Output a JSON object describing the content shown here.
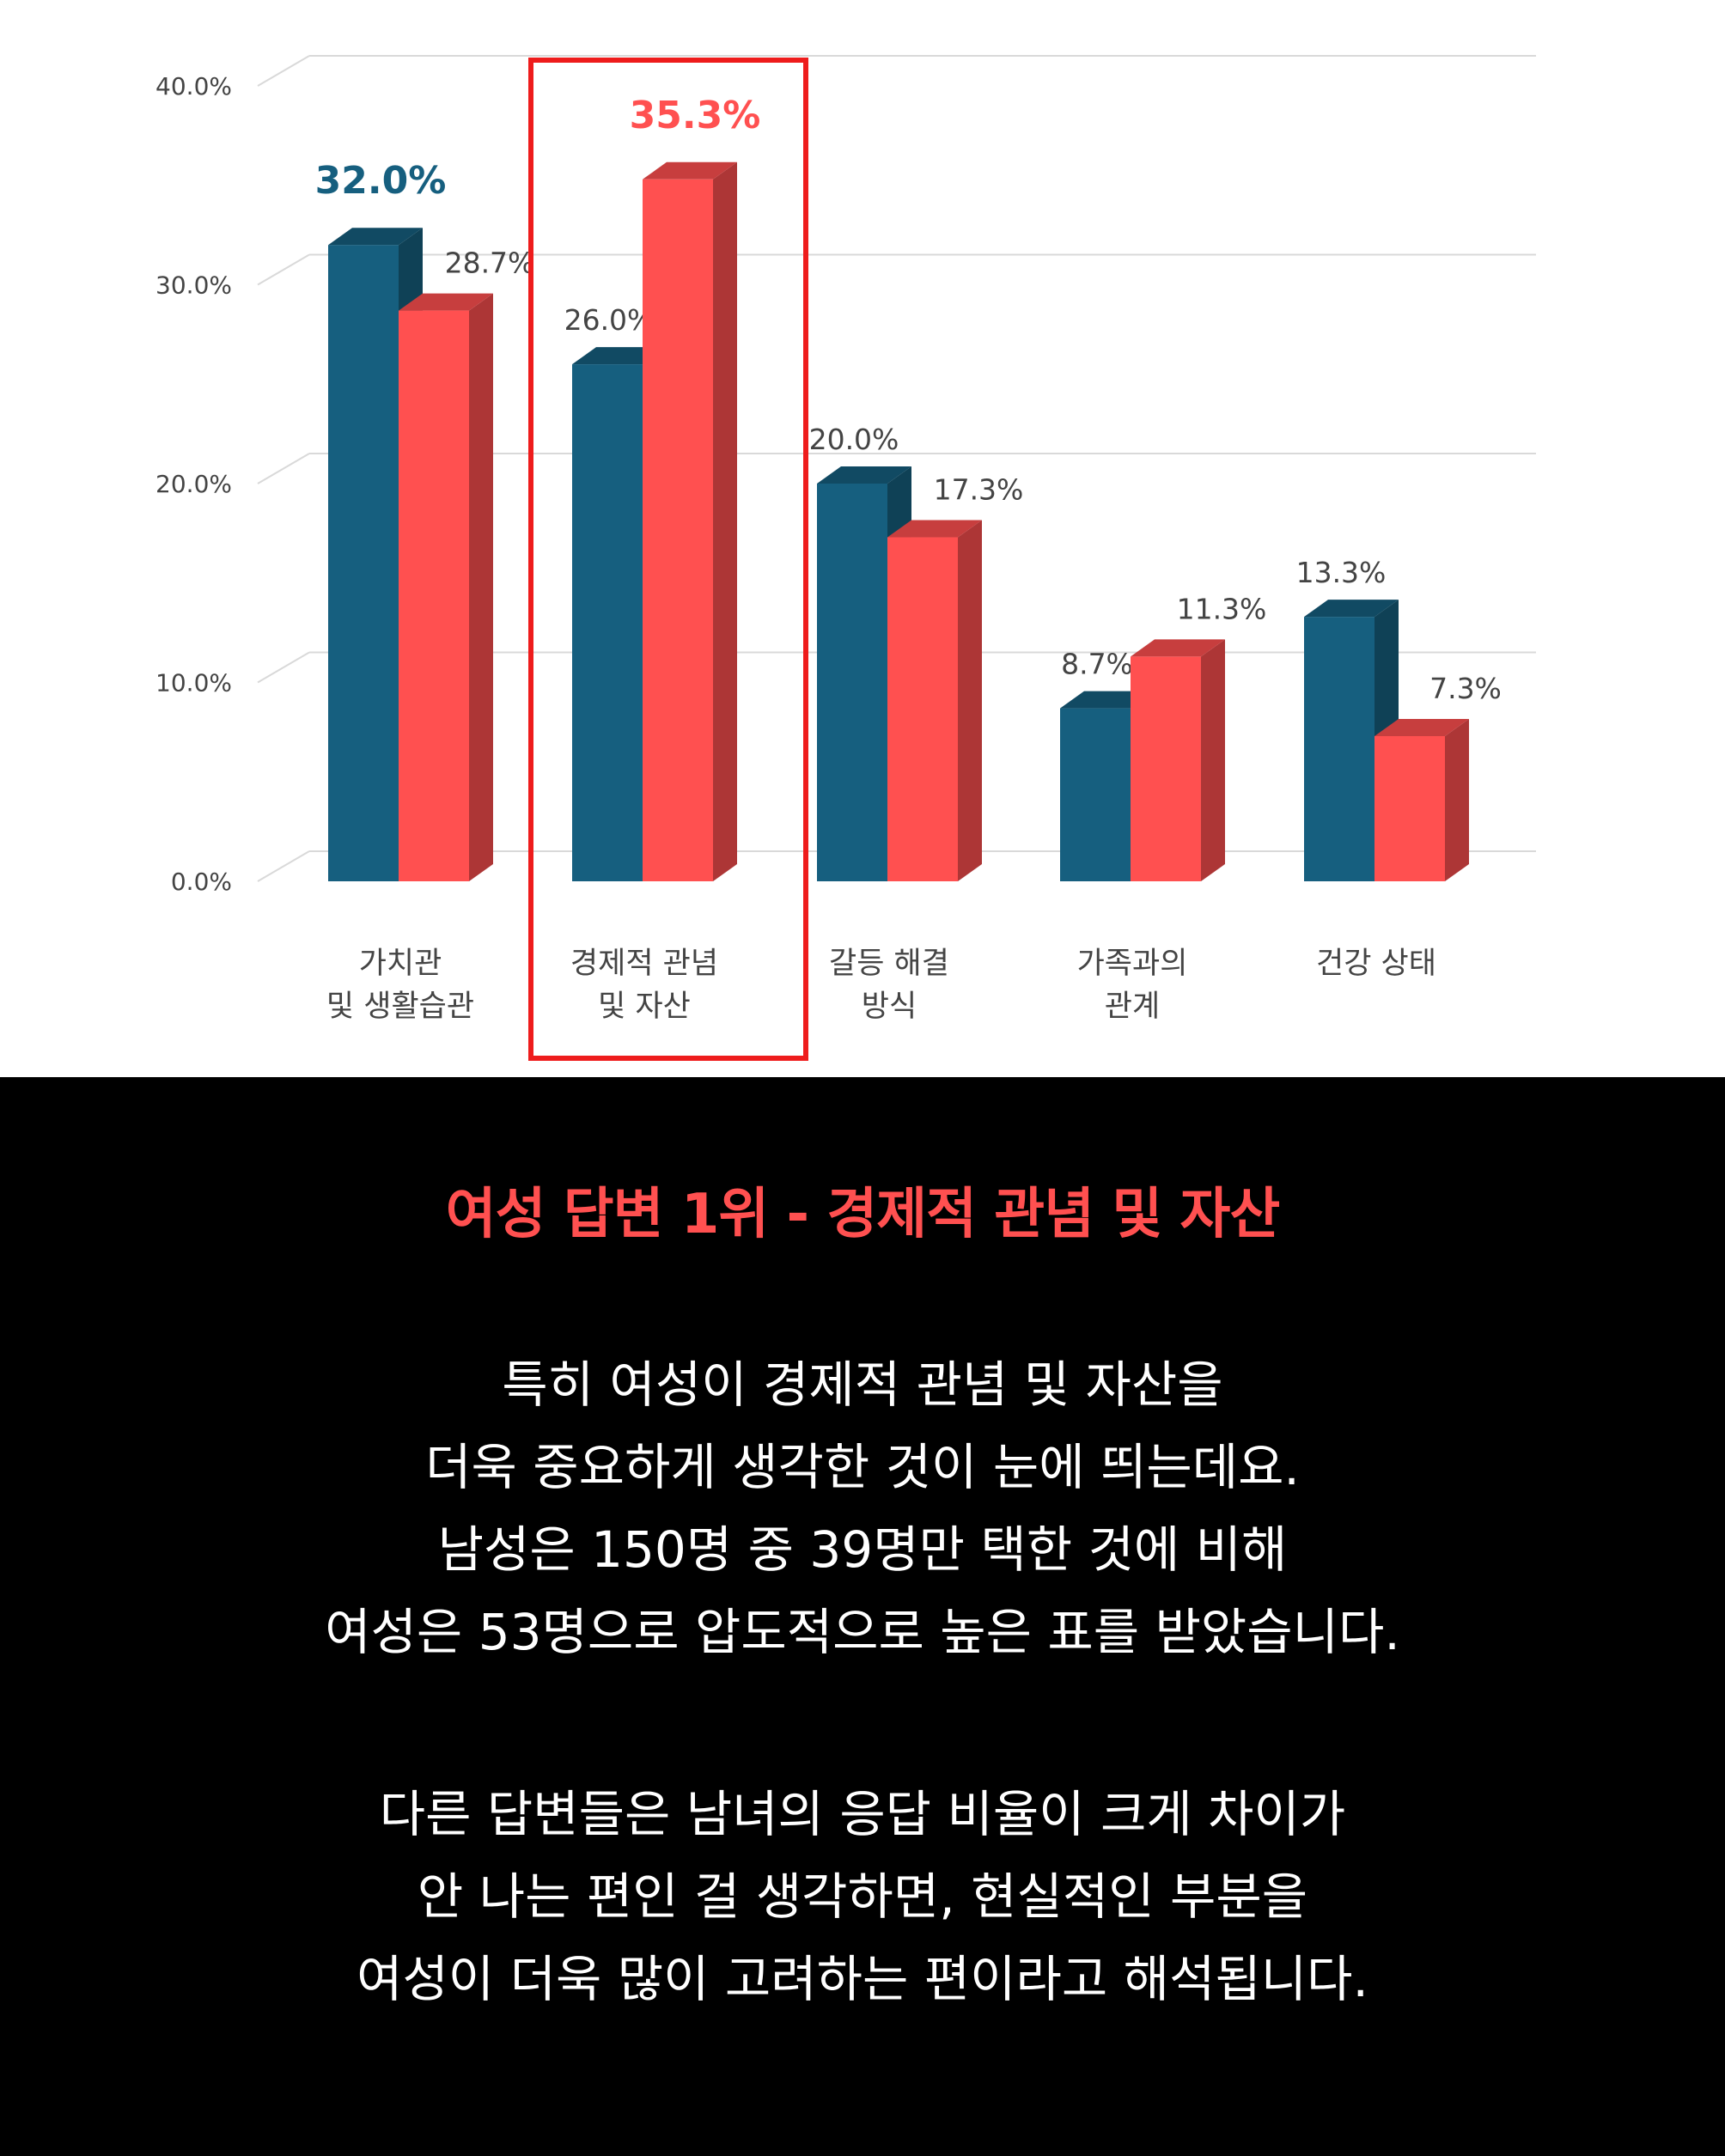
{
  "chart_data": {
    "type": "bar",
    "categories": [
      [
        "가치관",
        "및 생활습관"
      ],
      [
        "경제적 관념",
        "및 자산"
      ],
      [
        "갈등 해결",
        "방식"
      ],
      [
        "가족과의",
        "관계"
      ],
      [
        "건강 상태"
      ]
    ],
    "series": [
      {
        "values": [
          32.0,
          26.0,
          20.0,
          8.7,
          13.3
        ],
        "color": "#165f7f"
      },
      {
        "values": [
          28.7,
          35.3,
          17.3,
          11.3,
          7.3
        ],
        "color": "#ff5050"
      }
    ],
    "value_labels": [
      [
        "32.0%",
        "26.0%",
        "20.0%",
        "8.7%",
        "13.3%"
      ],
      [
        "28.7%",
        "35.3%",
        "17.3%",
        "11.3%",
        "7.3%"
      ]
    ],
    "emphasized_labels": [
      {
        "series": 0,
        "category": 0
      },
      {
        "series": 1,
        "category": 1
      }
    ],
    "ylim": [
      0,
      40
    ],
    "yticks": [
      "0.0%",
      "10.0%",
      "20.0%",
      "30.0%",
      "40.0%"
    ],
    "grid": true,
    "highlight_category": 1,
    "highlight_color": "#ee1c1c"
  },
  "text_panel": {
    "headline": "여성 답변 1위 - 경제적 관념 및 자산",
    "paragraph_1": [
      "특히 여성이 경제적 관념 및 자산을",
      "더욱 중요하게 생각한 것이 눈에 띄는데요.",
      "남성은 150명 중 39명만 택한 것에 비해",
      "여성은 53명으로 압도적으로 높은 표를 받았습니다."
    ],
    "paragraph_2": [
      "다른 답변들은 남녀의 응답 비율이 크게 차이가",
      "안 나는 편인 걸 생각하면, 현실적인 부분을",
      "여성이 더욱 많이 고려하는 편이라고 해석됩니다."
    ]
  }
}
